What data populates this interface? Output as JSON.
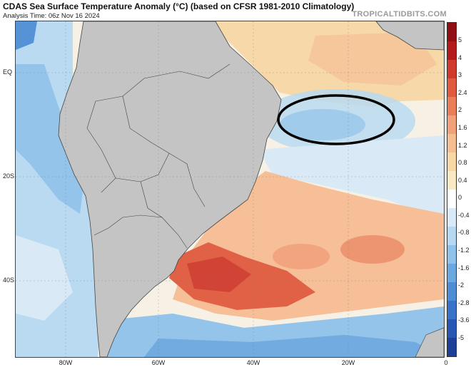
{
  "header": {
    "title": "CDAS Sea Surface Temperature Anomaly (°C) (based on CFSR 1981-2010 Climatology)",
    "analysis_time": "Analysis Time: 06z Nov 16 2024",
    "brand": "TROPICALTIDBITS.COM"
  },
  "map": {
    "lat_labels": [
      "EQ",
      "20S",
      "40S"
    ],
    "lon_labels": [
      "80W",
      "60W",
      "40W",
      "20W",
      "0"
    ],
    "land_color": "#c4c4c4",
    "highlight_ellipse_color": "#000000"
  },
  "colorbar": {
    "labels": [
      "5",
      "4",
      "3",
      "2.4",
      "2",
      "1.6",
      "1.2",
      "0.8",
      "0.4",
      "0",
      "-0.4",
      "-0.8",
      "-1.2",
      "-1.6",
      "-2",
      "-2.8",
      "-3.6",
      "-5"
    ],
    "colors": [
      "#8f0f12",
      "#b31b1b",
      "#cf3a2c",
      "#e05a3f",
      "#ea7e58",
      "#f2a07a",
      "#f6bd93",
      "#f7d7a6",
      "#f8ebc3",
      "#ffffff",
      "#d8eaf7",
      "#b6d9f1",
      "#8fc2ea",
      "#6aa8e0",
      "#4d8dd6",
      "#3872c9",
      "#2856b4",
      "#1e3f98"
    ]
  }
}
